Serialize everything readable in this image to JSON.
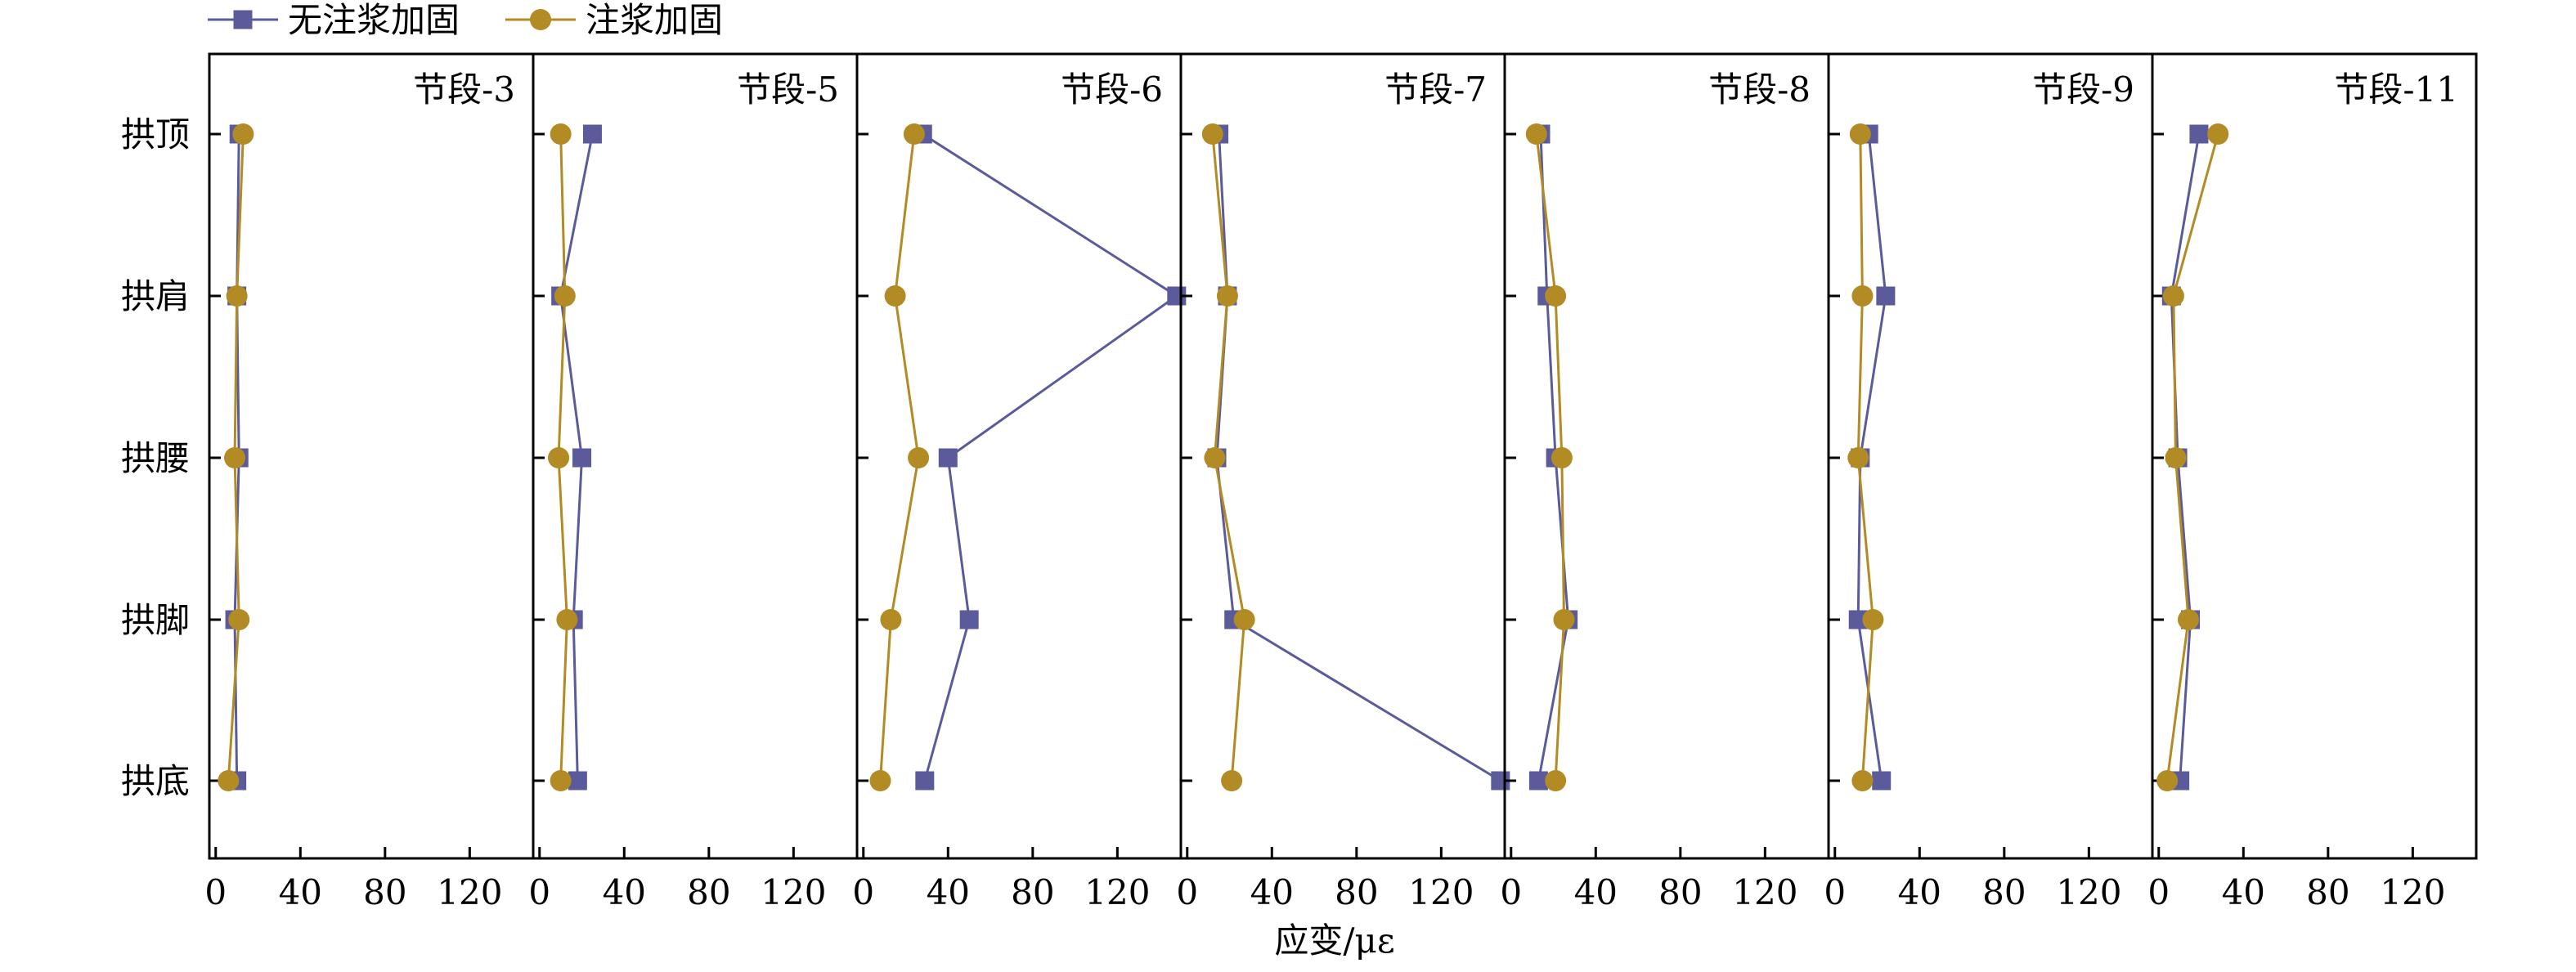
{
  "chart_data": {
    "type": "line",
    "layout": "small-multiples",
    "xlabel": "应变/με",
    "ylabel": "",
    "xlim": [
      -3,
      150
    ],
    "xticks": [
      0,
      40,
      80,
      120
    ],
    "categories": [
      "拱顶",
      "拱肩",
      "拱腰",
      "拱脚",
      "拱底"
    ],
    "grid": false,
    "legend_position": "top-left",
    "colors": {
      "无注浆加固": "#5b5b9b",
      "注浆加固": "#b38b24"
    },
    "legend": [
      {
        "name": "无注浆加固",
        "marker": "square"
      },
      {
        "name": "注浆加固",
        "marker": "circle"
      }
    ],
    "panels": [
      {
        "title": "节段-3",
        "series": [
          {
            "name": "无注浆加固",
            "values": [
              11,
              10,
              11,
              9,
              10
            ]
          },
          {
            "name": "注浆加固",
            "values": [
              13,
              10,
              9,
              11,
              6
            ]
          }
        ]
      },
      {
        "title": "节段-5",
        "series": [
          {
            "name": "无注浆加固",
            "values": [
              25,
              10,
              20,
              16,
              18
            ]
          },
          {
            "name": "注浆加固",
            "values": [
              10,
              12,
              9,
              13,
              10
            ]
          }
        ]
      },
      {
        "title": "节段-6",
        "series": [
          {
            "name": "无注浆加固",
            "values": [
              28,
              148,
              40,
              50,
              29
            ]
          },
          {
            "name": "注浆加固",
            "values": [
              24,
              15,
              26,
              13,
              8
            ]
          }
        ]
      },
      {
        "title": "节段-7",
        "series": [
          {
            "name": "无注浆加固",
            "values": [
              15,
              19,
              14,
              22,
              148
            ]
          },
          {
            "name": "注浆加固",
            "values": [
              12,
              19,
              13,
              27,
              21
            ]
          }
        ]
      },
      {
        "title": "节段-8",
        "series": [
          {
            "name": "无注浆加固",
            "values": [
              14,
              17,
              21,
              27,
              13
            ]
          },
          {
            "name": "注浆加固",
            "values": [
              12,
              21,
              24,
              25,
              21
            ]
          }
        ]
      },
      {
        "title": "节段-9",
        "series": [
          {
            "name": "无注浆加固",
            "values": [
              16,
              24,
              12,
              11,
              22
            ]
          },
          {
            "name": "注浆加固",
            "values": [
              12,
              13,
              11,
              18,
              13
            ]
          }
        ]
      },
      {
        "title": "节段-11",
        "series": [
          {
            "name": "无注浆加固",
            "values": [
              19,
              6,
              9,
              15,
              10
            ]
          },
          {
            "name": "注浆加固",
            "values": [
              28,
              7,
              8,
              14,
              4
            ]
          }
        ]
      }
    ]
  }
}
